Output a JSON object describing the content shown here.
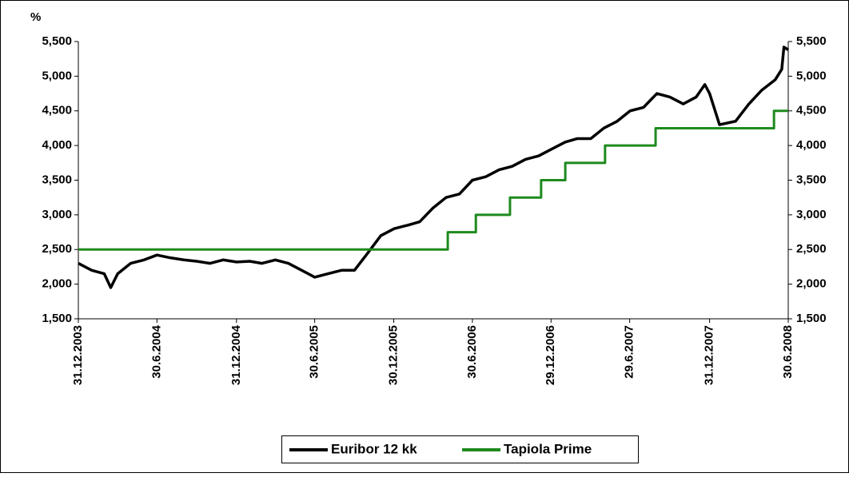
{
  "chart_data": {
    "type": "line",
    "y_label": "%",
    "ylim": [
      1.5,
      5.5
    ],
    "yticks": [
      {
        "value": 1.5,
        "label": "1,500"
      },
      {
        "value": 2.0,
        "label": "2,000"
      },
      {
        "value": 2.5,
        "label": "2,500"
      },
      {
        "value": 3.0,
        "label": "3,000"
      },
      {
        "value": 3.5,
        "label": "3,500"
      },
      {
        "value": 4.0,
        "label": "4,000"
      },
      {
        "value": 4.5,
        "label": "4,500"
      },
      {
        "value": 5.0,
        "label": "5,000"
      },
      {
        "value": 5.5,
        "label": "5,500"
      }
    ],
    "xlim": [
      "31.12.2003",
      "30.6.2008"
    ],
    "xticks": [
      "31.12.2003",
      "30.6.2004",
      "31.12.2004",
      "30.6.2005",
      "30.12.2005",
      "30.6.2006",
      "29.12.2006",
      "29.6.2007",
      "31.12.2007",
      "30.6.2008"
    ],
    "legend": "bottom",
    "series": [
      {
        "name": "Euribor 12 kk",
        "color": "#000000",
        "step": false,
        "x": [
          "31.12.2003",
          "31.1.2004",
          "29.2.2004",
          "15.3.2004",
          "31.3.2004",
          "30.4.2004",
          "31.5.2004",
          "30.6.2004",
          "31.7.2004",
          "31.8.2004",
          "30.9.2004",
          "31.10.2004",
          "30.11.2004",
          "31.12.2004",
          "31.1.2005",
          "28.2.2005",
          "31.3.2005",
          "30.4.2005",
          "31.5.2005",
          "30.6.2005",
          "31.7.2005",
          "31.8.2005",
          "30.9.2005",
          "31.10.2005",
          "30.11.2005",
          "31.12.2005",
          "31.1.2006",
          "28.2.2006",
          "31.3.2006",
          "30.4.2006",
          "31.5.2006",
          "30.6.2006",
          "31.7.2006",
          "31.8.2006",
          "30.9.2006",
          "31.10.2006",
          "30.11.2006",
          "31.12.2006",
          "31.1.2007",
          "28.2.2007",
          "31.3.2007",
          "30.4.2007",
          "31.5.2007",
          "30.6.2007",
          "31.7.2007",
          "31.8.2007",
          "30.9.2007",
          "31.10.2007",
          "30.11.2007",
          "20.12.2007",
          "31.12.2007",
          "23.1.2008",
          "29.2.2008",
          "31.3.2008",
          "30.4.2008",
          "31.5.2008",
          "15.6.2008",
          "20.6.2008",
          "30.6.2008"
        ],
        "values": [
          2.3,
          2.2,
          2.15,
          1.95,
          2.15,
          2.3,
          2.35,
          2.42,
          2.38,
          2.35,
          2.33,
          2.3,
          2.35,
          2.32,
          2.33,
          2.3,
          2.35,
          2.3,
          2.2,
          2.1,
          2.15,
          2.2,
          2.2,
          2.45,
          2.7,
          2.8,
          2.85,
          2.9,
          3.1,
          3.25,
          3.3,
          3.5,
          3.55,
          3.65,
          3.7,
          3.8,
          3.85,
          3.95,
          4.05,
          4.1,
          4.1,
          4.25,
          4.35,
          4.5,
          4.55,
          4.75,
          4.7,
          4.6,
          4.7,
          4.88,
          4.75,
          4.3,
          4.35,
          4.6,
          4.8,
          4.95,
          5.1,
          5.42,
          5.38
        ]
      },
      {
        "name": "Tapiola Prime",
        "color": "#1e8a1e",
        "step": true,
        "x": [
          "31.12.2003",
          "4.5.2006",
          "8.7.2006",
          "25.9.2006",
          "6.12.2006",
          "31.1.2007",
          "3.5.2007",
          "28.8.2007",
          "28.5.2008",
          "30.6.2008"
        ],
        "values": [
          2.5,
          2.75,
          3.0,
          3.25,
          3.5,
          3.75,
          4.0,
          4.25,
          4.5,
          4.5
        ]
      }
    ]
  }
}
